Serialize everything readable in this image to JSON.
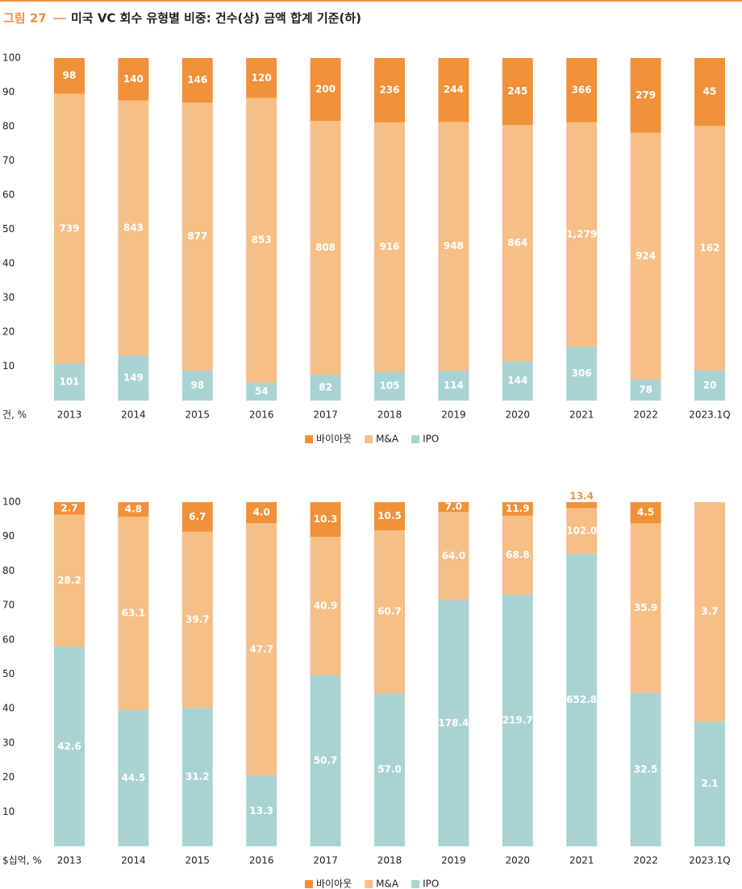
{
  "figure_label": "그림 27",
  "title": "미국 VC 회수 유형별 비중: 건수(상) 금액 합계 기준(하)",
  "chart_data": [
    {
      "type": "bar",
      "stacking": "percent",
      "ylabel": "건, %",
      "categories": [
        "2013",
        "2014",
        "2015",
        "2016",
        "2017",
        "2018",
        "2019",
        "2020",
        "2021",
        "2022",
        "2023.1Q"
      ],
      "ylim": [
        0,
        100
      ],
      "yticks": [
        10,
        20,
        30,
        40,
        50,
        60,
        70,
        80,
        90,
        100
      ],
      "grid": false,
      "series": [
        {
          "name": "바이아웃",
          "color": "#f0913a",
          "values": [
            98,
            140,
            146,
            120,
            200,
            236,
            244,
            245,
            366,
            279,
            45
          ],
          "value_labels": [
            "98",
            "140",
            "146",
            "120",
            "200",
            "236",
            "244",
            "245",
            "366",
            "279",
            "45"
          ]
        },
        {
          "name": "M&A",
          "color": "#f6bf88",
          "values": [
            739,
            843,
            877,
            853,
            808,
            916,
            948,
            864,
            1279,
            924,
            162
          ],
          "value_labels": [
            "739",
            "843",
            "877",
            "853",
            "808",
            "916",
            "948",
            "864",
            "1,279",
            "924",
            "162"
          ]
        },
        {
          "name": "IPO",
          "color": "#a9d3d3",
          "values": [
            101,
            149,
            98,
            54,
            82,
            105,
            114,
            144,
            306,
            78,
            20
          ],
          "value_labels": [
            "101",
            "149",
            "98",
            "54",
            "82",
            "105",
            "114",
            "144",
            "306",
            "78",
            "20"
          ]
        }
      ]
    },
    {
      "type": "bar",
      "stacking": "percent",
      "ylabel": "$십억, %",
      "categories": [
        "2013",
        "2014",
        "2015",
        "2016",
        "2017",
        "2018",
        "2019",
        "2020",
        "2021",
        "2022",
        "2023.1Q"
      ],
      "ylim": [
        0,
        100
      ],
      "yticks": [
        10,
        20,
        30,
        40,
        50,
        60,
        70,
        80,
        90,
        100
      ],
      "grid": false,
      "series": [
        {
          "name": "바이아웃",
          "color": "#f0913a",
          "values": [
            2.7,
            4.8,
            6.7,
            4.0,
            10.3,
            10.5,
            7.0,
            11.9,
            13.4,
            4.5,
            null
          ],
          "value_labels": [
            "2.7",
            "4.8",
            "6.7",
            "4.0",
            "10.3",
            "10.5",
            "7.0",
            "11.9",
            "13.4",
            "4.5",
            null
          ]
        },
        {
          "name": "M&A",
          "color": "#f6bf88",
          "values": [
            28.2,
            63.1,
            39.7,
            47.7,
            40.9,
            60.7,
            64.0,
            68.8,
            102.0,
            35.9,
            3.7
          ],
          "value_labels": [
            "28.2",
            "63.1",
            "39.7",
            "47.7",
            "40.9",
            "60.7",
            "64.0",
            "68.8",
            "102.0",
            "35.9",
            "3.7"
          ]
        },
        {
          "name": "IPO",
          "color": "#a9d3d3",
          "values": [
            42.6,
            44.5,
            31.2,
            13.3,
            50.7,
            57.0,
            178.4,
            219.7,
            652.8,
            32.5,
            2.1
          ],
          "value_labels": [
            "42.6",
            "44.5",
            "31.2",
            "13.3",
            "50.7",
            "57.0",
            "178.4",
            "219.7",
            "652.8",
            "32.5",
            "2.1"
          ]
        }
      ]
    }
  ]
}
